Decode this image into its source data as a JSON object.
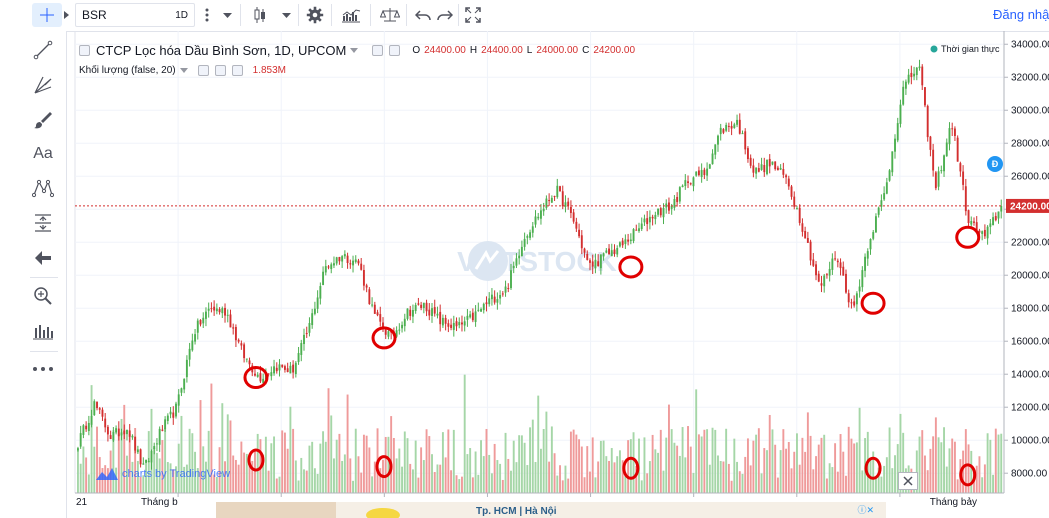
{
  "toolbar": {
    "symbol": "BSR",
    "interval": "1D",
    "login": "Đăng nhập",
    "icons": [
      "crosshair-icon",
      "more-vert-icon",
      "candle-icon",
      "chevron-down-icon",
      "gear-icon",
      "indicators-icon",
      "compare-icon",
      "undo-icon",
      "redo-icon",
      "fullscreen-icon"
    ]
  },
  "sidebar": {
    "tools": [
      "trendline-icon",
      "fork-icon",
      "brush-icon",
      "text-icon",
      "pattern-icon",
      "measure-icon",
      "arrow-left-icon",
      "zoom-icon",
      "chart-bars-icon",
      "more-icon"
    ],
    "text_label": "Aa"
  },
  "legend": {
    "title": "CTCP Lọc hóa Dầu Bình Sơn, 1D, UPCOM",
    "o_label": "O",
    "o": "24400.00",
    "h_label": "H",
    "h": "24400.00",
    "l_label": "L",
    "l": "24000.00",
    "c_label": "C",
    "c": "24200.00",
    "volume_label": "Khối lượng (false, 20)",
    "volume_value": "1.853M",
    "realtime": "Thời gian thực"
  },
  "watermark": {
    "text": "VIETSTOCK"
  },
  "branding": {
    "text": "charts by TradingView"
  },
  "ad": {
    "text1": "Tp. HCM | Hà Nội"
  },
  "colors": {
    "up": "#4caf50",
    "down": "#d32f2f",
    "vol_up": "#a5d6a7",
    "vol_down": "#ef9a9a",
    "price_line": "#d32f2f",
    "marker": "#e00000",
    "badge": "#2196f3"
  },
  "chart_data": {
    "type": "candlestick",
    "symbol": "BSR",
    "ylim": [
      6800,
      34500
    ],
    "y_ticks": [
      34000,
      32000,
      30000,
      28000,
      26000,
      24000,
      22000,
      20000,
      18000,
      16000,
      14000,
      12000,
      10000,
      8000
    ],
    "y_tick_labels": [
      "34000.00",
      "32000.00",
      "30000.00",
      "28000.00",
      "26000.00",
      "24000.00",
      "22000.00",
      "20000.00",
      "18000.00",
      "16000.00",
      "14000.00",
      "12000.00",
      "10000.00",
      "8000.00"
    ],
    "last_price": 24200,
    "last_price_label": "24200.00",
    "x_labels": [
      {
        "text": "21",
        "pos": 0.0
      },
      {
        "text": "Tháng b",
        "pos": 0.07
      },
      {
        "text": "Tháng bảy",
        "pos": 0.92
      }
    ],
    "price_path": [
      9800,
      12200,
      10200,
      10800,
      8200,
      10500,
      12000,
      16500,
      18000,
      17800,
      15200,
      13800,
      14500,
      14200,
      16800,
      20500,
      21200,
      20800,
      17500,
      16200,
      17800,
      18200,
      17200,
      16800,
      17500,
      18500,
      19200,
      22200,
      23800,
      25200,
      23500,
      20500,
      21200,
      21800,
      22800,
      23800,
      24200,
      25800,
      26200,
      28800,
      29300,
      26200,
      26800,
      25800,
      22800,
      19200,
      21300,
      17800,
      22200,
      25200,
      31200,
      32800,
      25200,
      29300,
      23300,
      22300,
      24200
    ],
    "markers": [
      {
        "x": 0.195,
        "y": 13800
      },
      {
        "x": 0.333,
        "y": 16200
      },
      {
        "x": 0.599,
        "y": 20500
      },
      {
        "x": 0.86,
        "y": 18300
      },
      {
        "x": 0.962,
        "y": 22300
      }
    ],
    "volume_markers": [
      {
        "x": 0.195,
        "v": 8800
      },
      {
        "x": 0.333,
        "v": 8400
      },
      {
        "x": 0.599,
        "v": 8300
      },
      {
        "x": 0.86,
        "v": 8300
      },
      {
        "x": 0.962,
        "v": 7900
      }
    ]
  }
}
